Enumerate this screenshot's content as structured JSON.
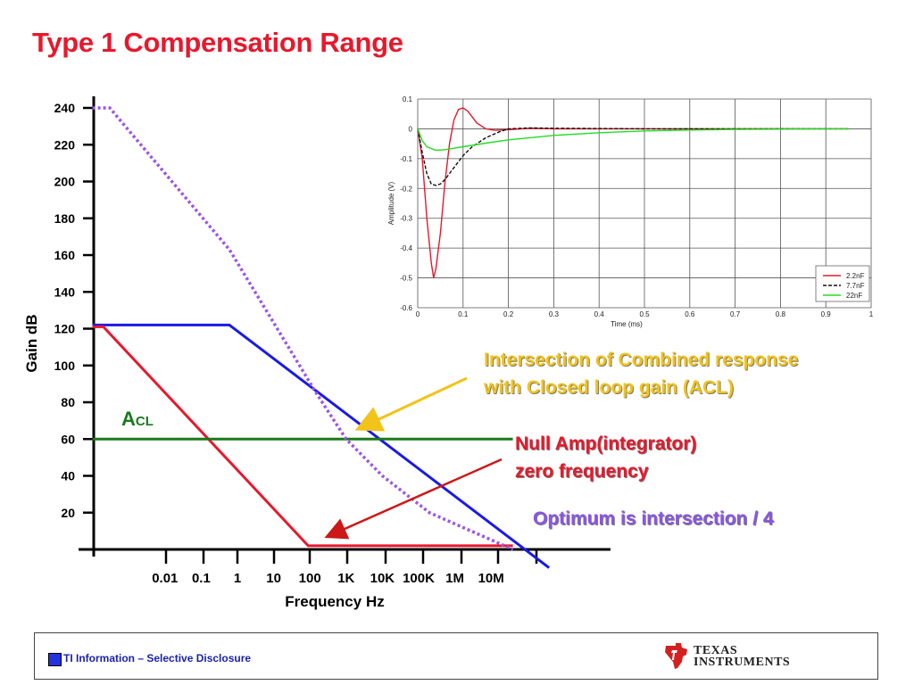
{
  "slide": {
    "title": "Type 1 Compensation Range"
  },
  "annotations": {
    "intersection_line1": "Intersection of Combined response",
    "intersection_line2": "with Closed loop gain (ACL)",
    "null_amp_line1": "Null Amp(integrator)",
    "null_amp_line2": "zero frequency",
    "optimum": "Optimum is intersection / 4"
  },
  "footer": {
    "text": "TI Information – Selective Disclosure",
    "logo_line1": "TEXAS",
    "logo_line2": "INSTRUMENTS"
  },
  "chart_data": [
    {
      "type": "line",
      "title": "",
      "xlabel": "Frequency Hz",
      "ylabel": "Gain dB",
      "y_ticks": [
        20,
        40,
        60,
        80,
        100,
        120,
        140,
        160,
        180,
        200,
        220,
        240
      ],
      "x_tick_labels": [
        "0.01",
        "0.1",
        "1",
        "10",
        "100",
        "1K",
        "10K",
        "100K",
        "1M",
        "10M"
      ],
      "x_tick_values": [
        0.01,
        0.1,
        1,
        10,
        100,
        1000,
        10000,
        100000,
        1000000,
        10000000
      ],
      "xscale": "log",
      "ylim": [
        0,
        240
      ],
      "label_acl": "ACL",
      "series": [
        {
          "color": "#1a1ae6",
          "x": [
            0.0001,
            0.6,
            400000000
          ],
          "y": [
            122,
            122,
            -10
          ]
        },
        {
          "color": "#e8182c",
          "x": [
            0.0001,
            0.0002,
            90,
            40000000
          ],
          "y": [
            121,
            121,
            2,
            2
          ]
        },
        {
          "color": "#1a7a1a",
          "x": [
            0.0001,
            40000000
          ],
          "y": [
            60,
            60
          ]
        },
        {
          "color": "#9b55e6",
          "dashed": true,
          "x": [
            0.0001,
            0.0003,
            0.6,
            150,
            1000,
            10000,
            200000,
            40000000
          ],
          "y": [
            240,
            240,
            163,
            85,
            60,
            40,
            20,
            0
          ]
        }
      ]
    },
    {
      "type": "line",
      "title": "",
      "xlabel": "Time (ms)",
      "ylabel": "Amplitude (V)",
      "xlim": [
        0,
        1
      ],
      "ylim": [
        -0.6,
        0.1
      ],
      "x_ticks": [
        "0",
        "0.1",
        "0.2",
        "0.3",
        "0.4",
        "0.5",
        "0.6",
        "0.7",
        "0.8",
        "0.9",
        "1"
      ],
      "y_ticks": [
        "0.1",
        "0",
        "-0.1",
        "-0.2",
        "-0.3",
        "-0.4",
        "-0.5",
        "-0.6"
      ],
      "legend_position": "bottom-right",
      "series": [
        {
          "name": "2.2nF",
          "color": "#e8182c",
          "x": [
            0,
            0.01,
            0.02,
            0.03,
            0.035,
            0.04,
            0.05,
            0.06,
            0.07,
            0.08,
            0.09,
            0.1,
            0.11,
            0.12,
            0.13,
            0.15,
            0.17,
            0.2,
            0.25,
            0.3,
            0.5,
            0.7,
            0.95
          ],
          "y": [
            0,
            -0.1,
            -0.3,
            -0.45,
            -0.5,
            -0.47,
            -0.35,
            -0.18,
            -0.05,
            0.03,
            0.065,
            0.07,
            0.06,
            0.04,
            0.02,
            0.0,
            -0.005,
            -0.003,
            0.002,
            0.0,
            0.0,
            0.0,
            0.0
          ]
        },
        {
          "name": "7.7nF",
          "color": "#111111",
          "dashed": true,
          "x": [
            0,
            0.01,
            0.02,
            0.03,
            0.04,
            0.05,
            0.06,
            0.08,
            0.1,
            0.12,
            0.15,
            0.18,
            0.2,
            0.25,
            0.3,
            0.5,
            0.7,
            0.95
          ],
          "y": [
            0,
            -0.08,
            -0.15,
            -0.185,
            -0.19,
            -0.185,
            -0.17,
            -0.13,
            -0.09,
            -0.06,
            -0.03,
            -0.01,
            0.0,
            0.003,
            0.002,
            0.0,
            0.0,
            0.0
          ]
        },
        {
          "name": "22nF",
          "color": "#22dd22",
          "x": [
            0,
            0.01,
            0.02,
            0.04,
            0.06,
            0.08,
            0.1,
            0.15,
            0.2,
            0.3,
            0.4,
            0.5,
            0.6,
            0.7,
            0.8,
            0.95
          ],
          "y": [
            0,
            -0.04,
            -0.06,
            -0.072,
            -0.07,
            -0.065,
            -0.06,
            -0.048,
            -0.037,
            -0.022,
            -0.013,
            -0.007,
            -0.004,
            -0.002,
            -0.001,
            0.0
          ]
        }
      ]
    }
  ]
}
